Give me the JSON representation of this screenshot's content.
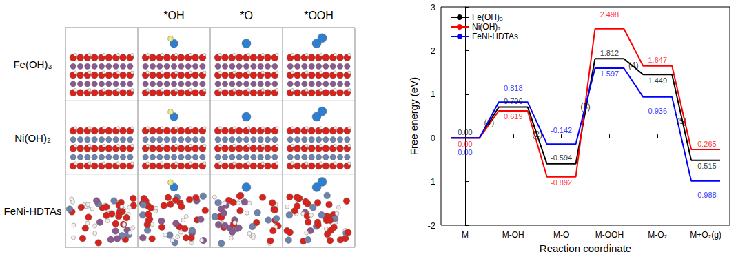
{
  "panel": {
    "columns": [
      "*OH",
      "*O",
      "*OOH"
    ],
    "rows": [
      "Fe(OH)₃",
      "Ni(OH)₂",
      "FeNi-HDTAs"
    ]
  },
  "chart_data": {
    "type": "line",
    "categories": [
      "M",
      "M-OH",
      "M-O",
      "M-OOH",
      "M-O₂",
      "M+O₂(g)"
    ],
    "series": [
      {
        "name": "Fe(OH)₃",
        "color": "#000000",
        "values": [
          0.0,
          0.706,
          -0.594,
          1.812,
          1.449,
          -0.515
        ],
        "value_labels": [
          "0.00",
          "0.706",
          "-0.594",
          "1.812",
          "1.449",
          "-0.515"
        ]
      },
      {
        "name": "Ni(OH)₂",
        "color": "#ff0000",
        "values": [
          0.0,
          0.619,
          -0.892,
          2.498,
          1.647,
          -0.265
        ],
        "value_labels": [
          "0.00",
          "0.619",
          "-0.892",
          "2.498",
          "1.647",
          "-0.265"
        ]
      },
      {
        "name": "FeNi-HDTAs",
        "color": "#0000ff",
        "values": [
          0.0,
          0.818,
          -0.142,
          1.597,
          0.936,
          -0.988
        ],
        "value_labels": [
          "0.00",
          "0.818",
          "-0.142",
          "1.597",
          "0.936",
          "-0.988"
        ]
      }
    ],
    "ylim": [
      -2,
      3
    ],
    "yticks": [
      -2,
      -1,
      0,
      1,
      2,
      3
    ],
    "y_label": "Free energy (eV)",
    "x_label": "Reaction coordinate",
    "annotations": [
      "(1)",
      "(2)",
      "(3)",
      "(4)",
      "(5)"
    ],
    "data_labels": true,
    "legend": "upper left",
    "grid": false
  }
}
